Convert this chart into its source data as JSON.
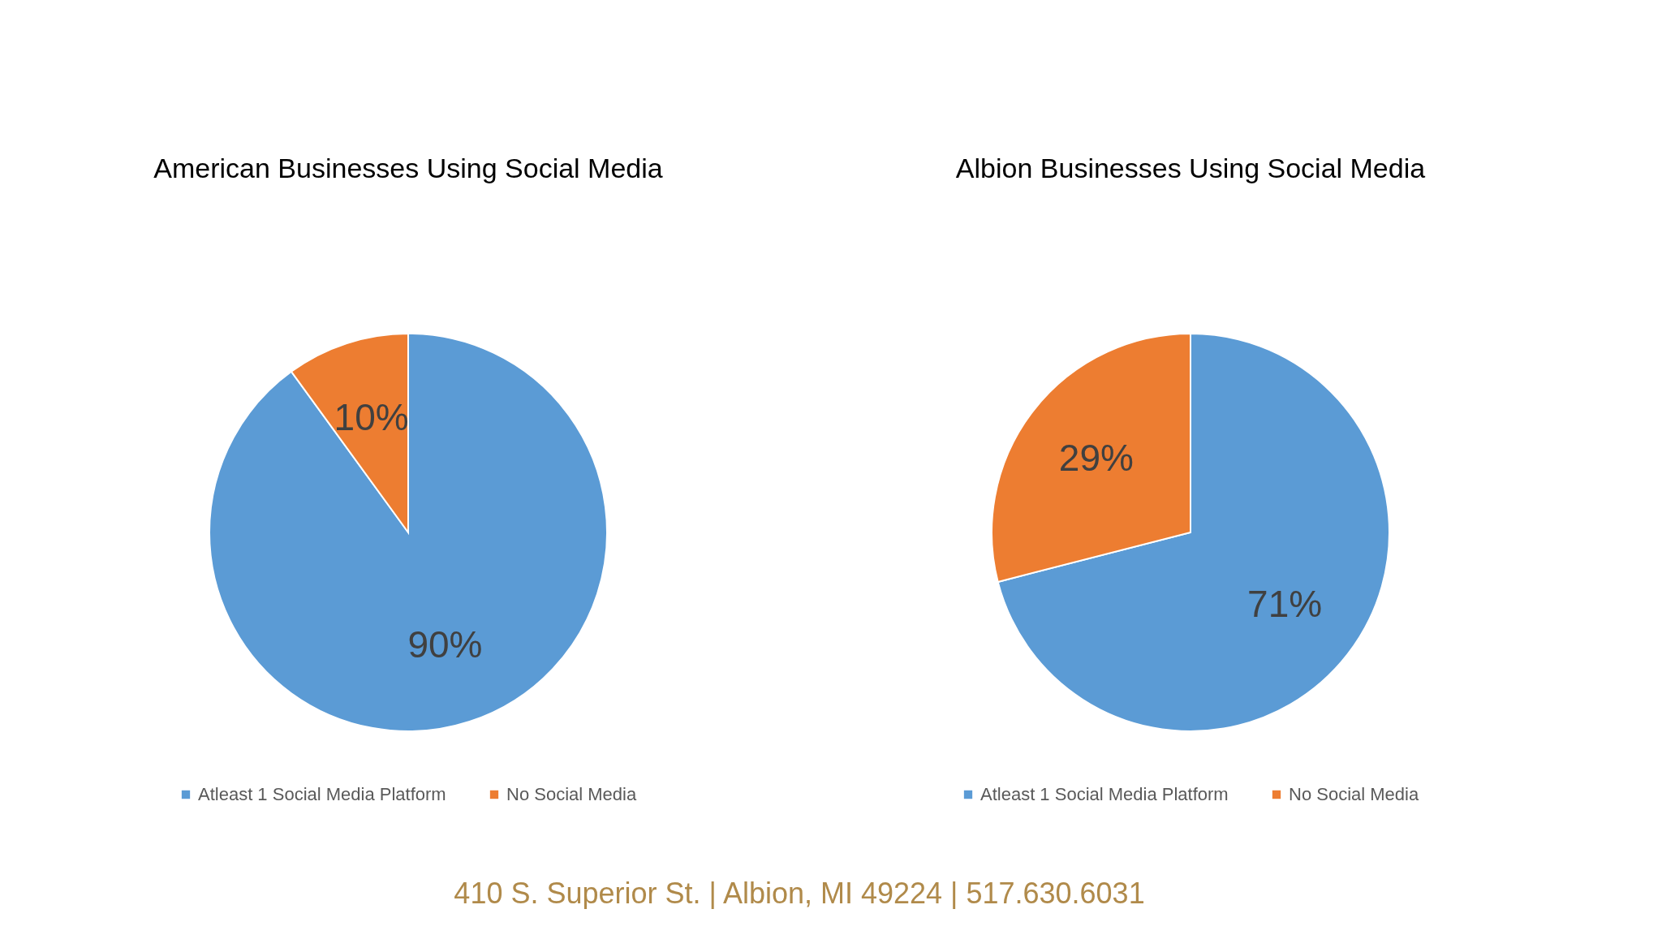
{
  "chart_data": [
    {
      "type": "pie",
      "title": "American Businesses Using Social Media",
      "categories": [
        "Atleast 1 Social Media Platform",
        "No Social Media"
      ],
      "values": [
        90,
        10
      ],
      "colors": [
        "#5b9bd5",
        "#ed7d31"
      ],
      "value_labels": [
        "90%",
        "10%"
      ],
      "legend": "bottom"
    },
    {
      "type": "pie",
      "title": "Albion Businesses Using Social Media",
      "categories": [
        "Atleast 1 Social Media Platform",
        "No Social Media"
      ],
      "values": [
        71,
        29
      ],
      "colors": [
        "#5b9bd5",
        "#ed7d31"
      ],
      "value_labels": [
        "71%",
        "29%"
      ],
      "legend": "bottom",
      "annotations": [
        "410 S. Superior St. | Albion, MI 49224 | 517.630.6031"
      ]
    }
  ]
}
